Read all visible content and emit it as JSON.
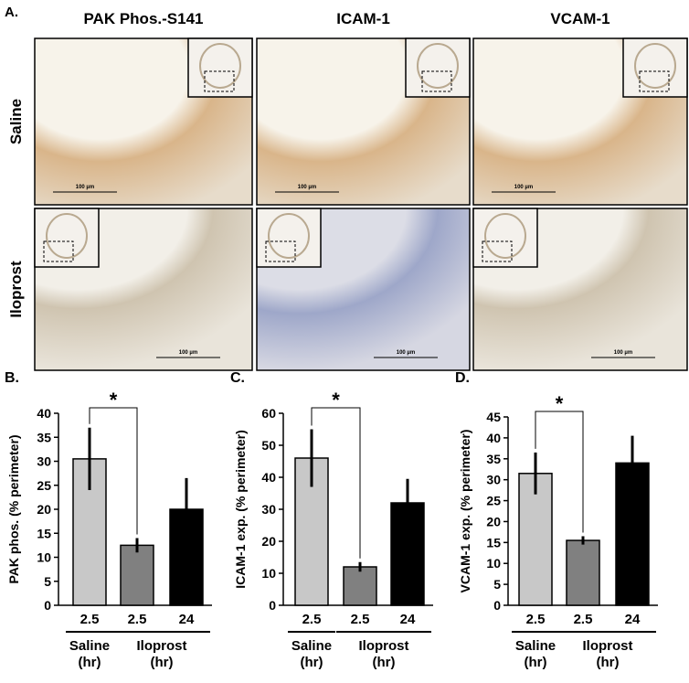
{
  "figure": {
    "panel_label": "A.",
    "columns": [
      "PAK Phos.-S141",
      "ICAM-1",
      "VCAM-1"
    ],
    "rows": [
      "Saline",
      "Iloprost"
    ],
    "scale_bar": "100 µm"
  },
  "chart_data": [
    {
      "type": "bar",
      "panel_label": "B.",
      "y_label": "PAK phos. (% perimeter)",
      "categories": [
        "2.5",
        "2.5",
        "24"
      ],
      "groups": [
        {
          "name": "Saline",
          "unit": "(hr)"
        },
        {
          "name": "Iloprost",
          "unit": "(hr)"
        }
      ],
      "values": [
        30.5,
        12.5,
        20
      ],
      "errors": [
        6.5,
        1.5,
        6.5
      ],
      "colors": [
        "#c8c8c8",
        "#808080",
        "#000000"
      ],
      "ylim": [
        0,
        40
      ],
      "yticks": [
        0,
        5,
        10,
        15,
        20,
        25,
        30,
        35,
        40
      ],
      "significance": "*"
    },
    {
      "type": "bar",
      "panel_label": "C.",
      "y_label": "ICAM-1 exp. (% perimeter)",
      "categories": [
        "2.5",
        "2.5",
        "24"
      ],
      "groups": [
        {
          "name": "Saline",
          "unit": "(hr)"
        },
        {
          "name": "Iloprost",
          "unit": "(hr)"
        }
      ],
      "values": [
        46,
        12,
        32
      ],
      "errors": [
        9,
        1.5,
        7.5
      ],
      "colors": [
        "#c8c8c8",
        "#808080",
        "#000000"
      ],
      "ylim": [
        0,
        60
      ],
      "yticks": [
        0,
        10,
        20,
        30,
        40,
        50,
        60
      ],
      "significance": "*"
    },
    {
      "type": "bar",
      "panel_label": "D.",
      "y_label": "VCAM-1 exp. (% perimeter)",
      "categories": [
        "2.5",
        "2.5",
        "24"
      ],
      "groups": [
        {
          "name": "Saline",
          "unit": "(hr)"
        },
        {
          "name": "Iloprost",
          "unit": "(hr)"
        }
      ],
      "values": [
        31.5,
        15.5,
        34
      ],
      "errors": [
        5,
        1,
        6.5
      ],
      "colors": [
        "#c8c8c8",
        "#808080",
        "#000000"
      ],
      "ylim": [
        0,
        45
      ],
      "yticks": [
        0,
        5,
        10,
        15,
        20,
        25,
        30,
        35,
        40,
        45
      ],
      "significance": "*"
    }
  ]
}
